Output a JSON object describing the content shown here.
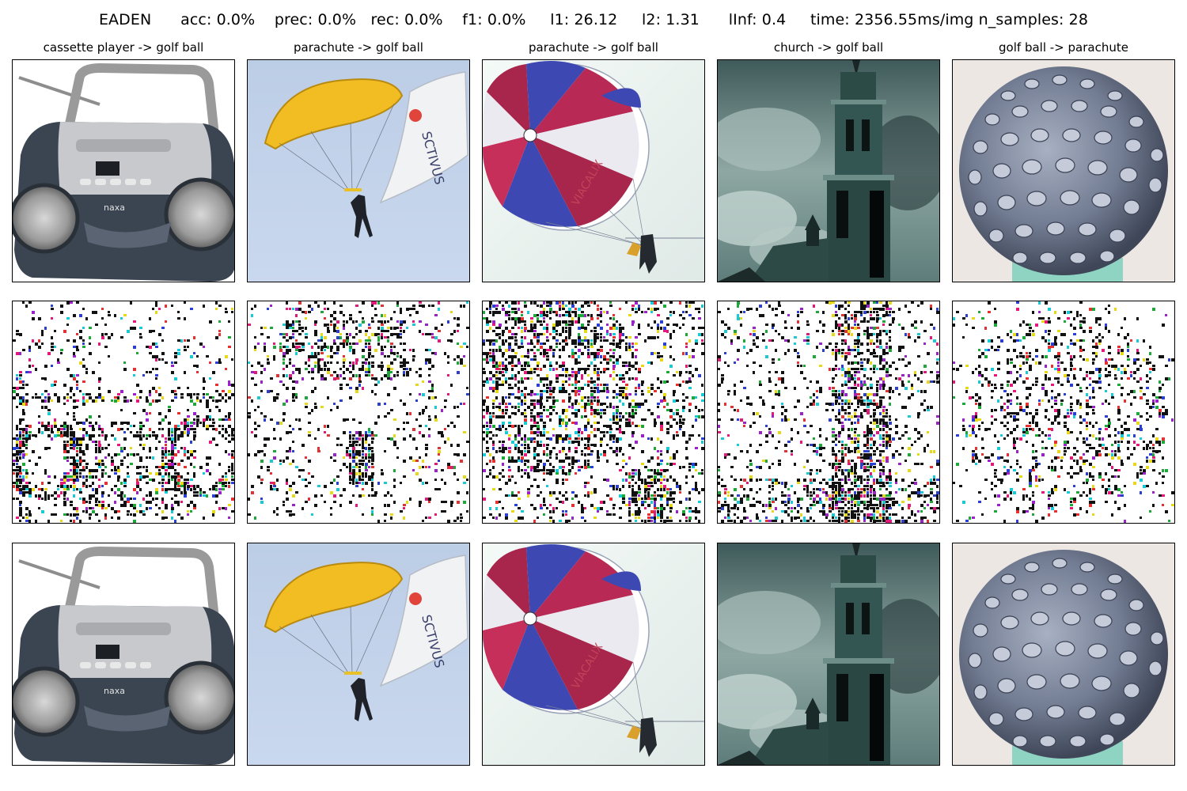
{
  "header": {
    "method": "EADEN",
    "metrics": [
      {
        "label": "acc",
        "value": "0.0%"
      },
      {
        "label": "prec",
        "value": "0.0%"
      },
      {
        "label": "rec",
        "value": "0.0%"
      },
      {
        "label": "f1",
        "value": "0.0%"
      },
      {
        "label": "l1",
        "value": "26.12"
      },
      {
        "label": "l2",
        "value": "1.31"
      },
      {
        "label": "lInf",
        "value": "0.4"
      },
      {
        "label": "time",
        "value": "2356.55ms/img"
      },
      {
        "label": "n_samples",
        "value": "28"
      }
    ],
    "suptitle": "EADEN      acc: 0.0%    prec: 0.0%   rec: 0.0%    f1: 0.0%     l1: 26.12     l2: 1.31      lInf: 0.4     time: 2356.55ms/img n_samples: 28"
  },
  "columns": [
    {
      "title": "cassette player -> golf ball",
      "subject": "cassette-player"
    },
    {
      "title": "parachute -> golf ball",
      "subject": "yellow-parachute"
    },
    {
      "title": "parachute -> golf ball",
      "subject": "striped-parasail"
    },
    {
      "title": "church -> golf ball",
      "subject": "church-tower"
    },
    {
      "title": "golf ball -> parachute",
      "subject": "golf-ball"
    }
  ],
  "rows": [
    "original",
    "perturbation",
    "adversarial"
  ],
  "colors": {
    "noise_dark": "#111111",
    "noise_colors": [
      "#e0197a",
      "#2b3fd1",
      "#1ea83a",
      "#e8d81a",
      "#19c9d6",
      "#9a22c8",
      "#e33232"
    ]
  }
}
